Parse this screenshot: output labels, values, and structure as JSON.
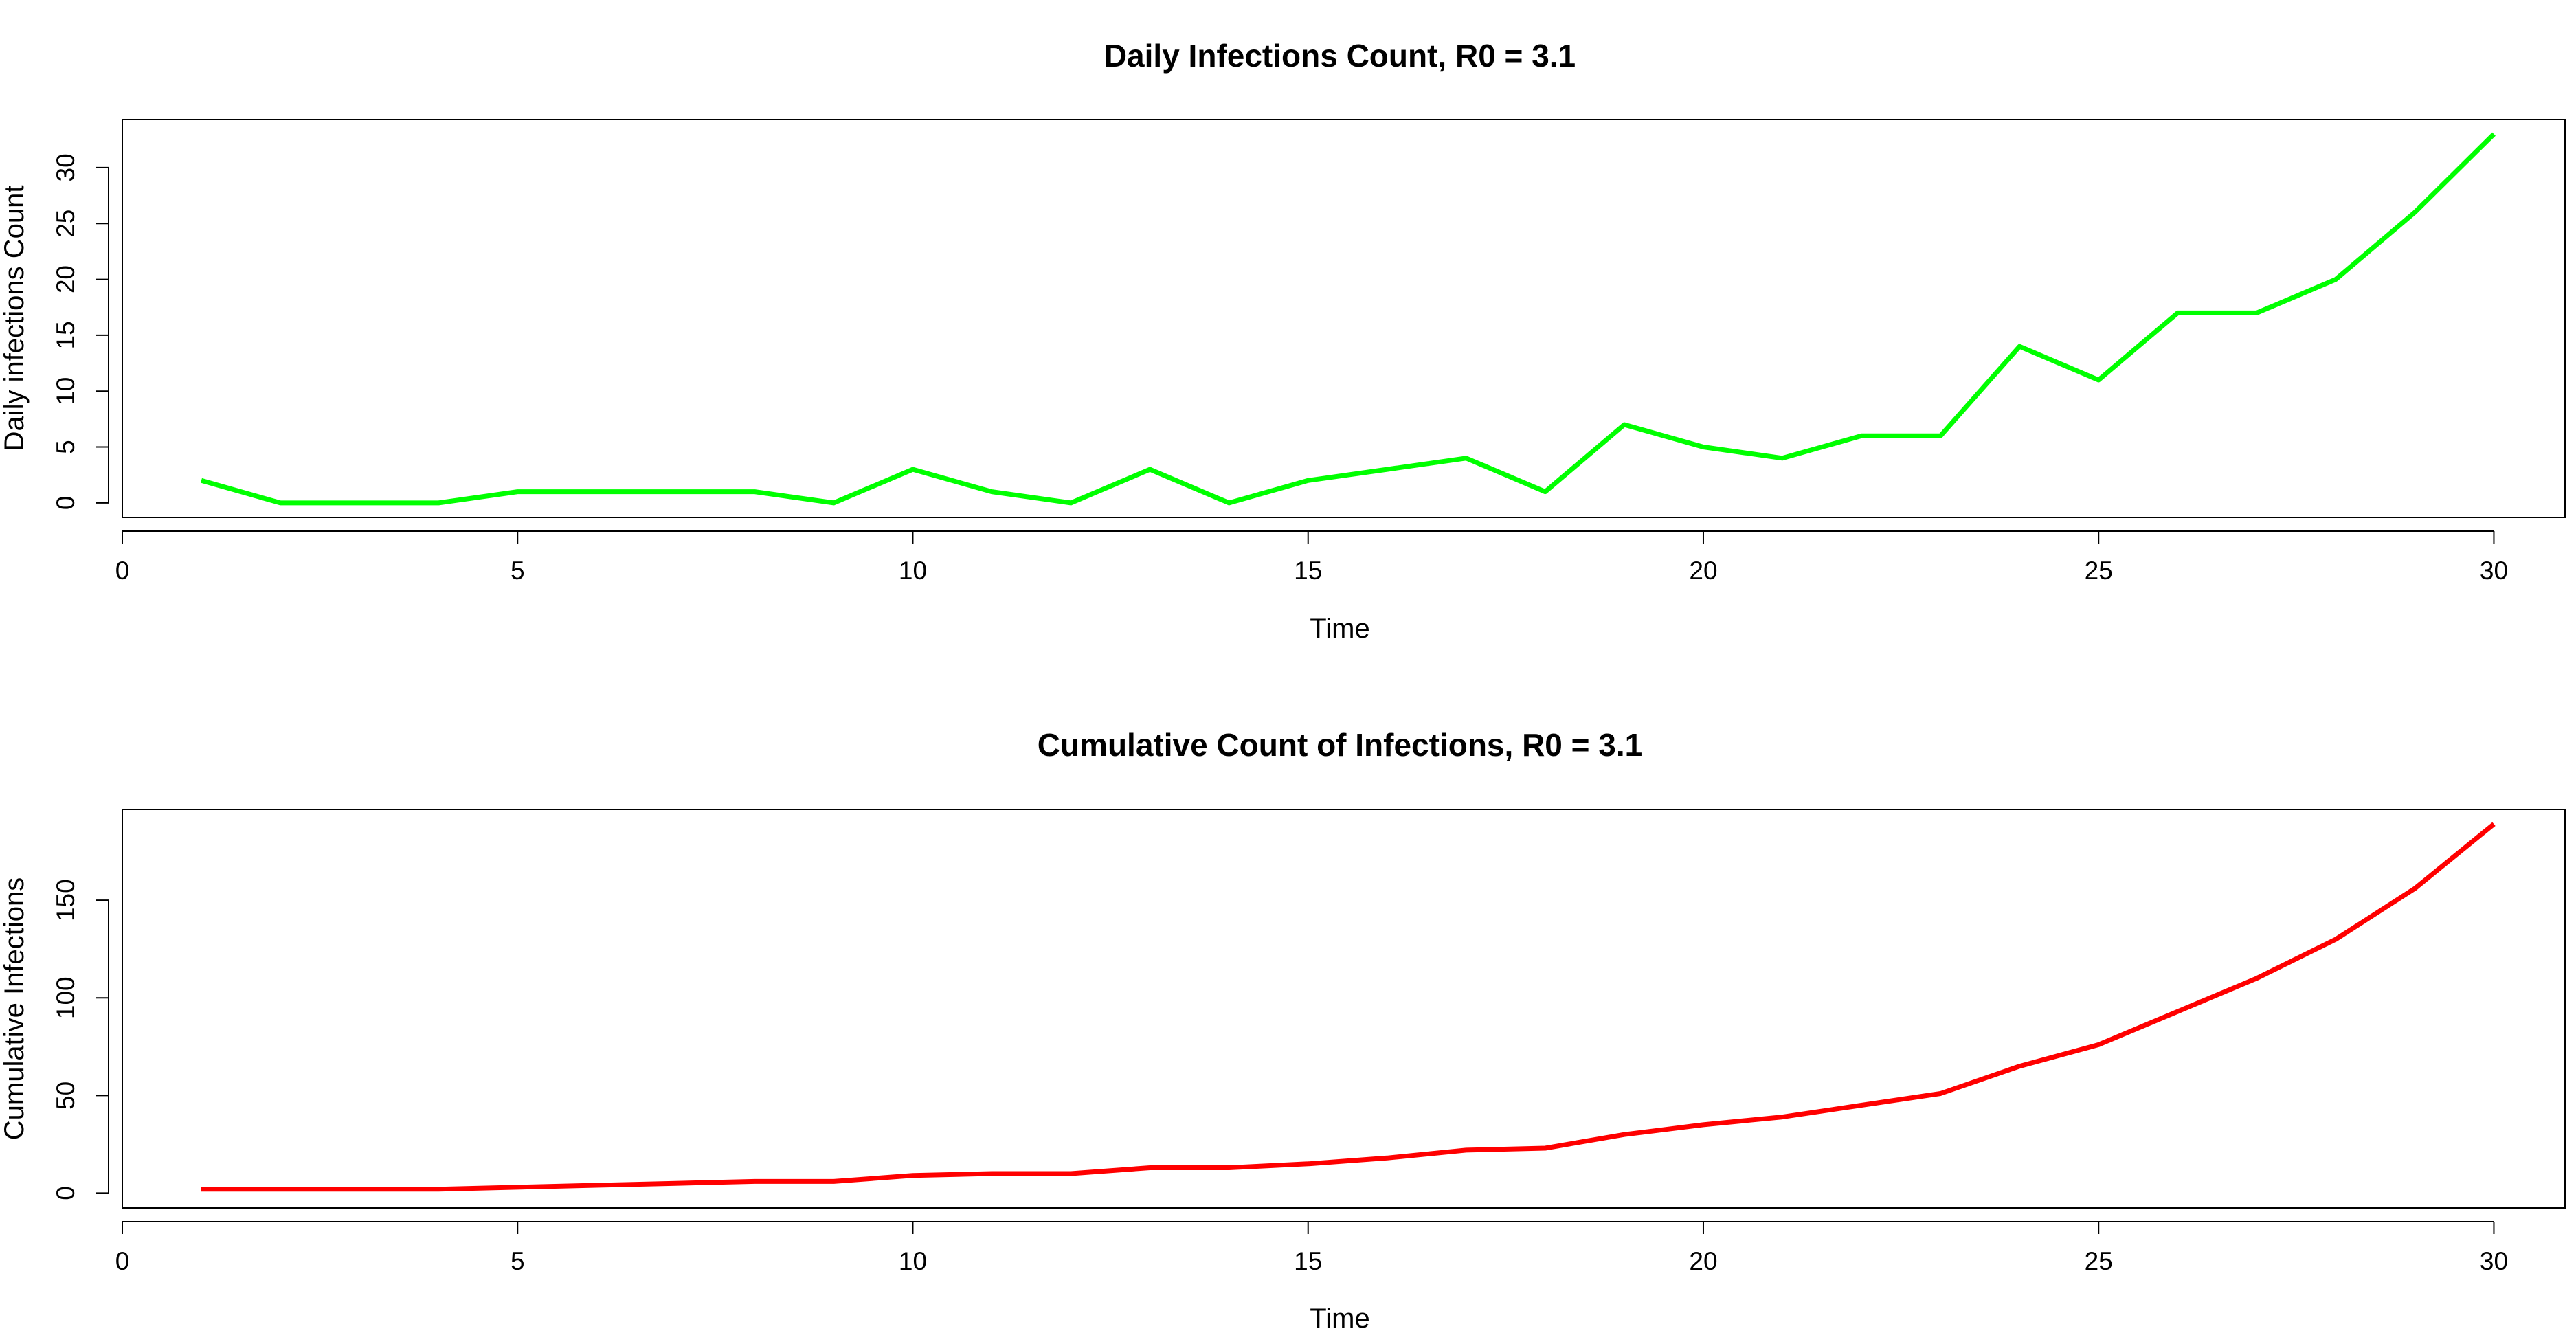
{
  "chart_data": [
    {
      "type": "line",
      "title": "Daily Infections Count, R0 = 3.1",
      "xlabel": "Time",
      "ylabel": "Daily infections Count",
      "x": [
        1,
        2,
        3,
        4,
        5,
        6,
        7,
        8,
        9,
        10,
        11,
        12,
        13,
        14,
        15,
        16,
        17,
        18,
        19,
        20,
        21,
        22,
        23,
        24,
        25,
        26,
        27,
        28,
        29,
        30
      ],
      "series": [
        {
          "values": [
            2,
            0,
            0,
            0,
            1,
            1,
            1,
            1,
            0,
            3,
            1,
            0,
            3,
            0,
            2,
            3,
            4,
            1,
            7,
            5,
            4,
            6,
            6,
            14,
            11,
            17,
            17,
            20,
            26,
            33
          ]
        }
      ],
      "xlim": [
        0,
        30.9
      ],
      "ylim": [
        -1.3,
        34.3
      ],
      "xticks": [
        0,
        5,
        10,
        15,
        20,
        25,
        30
      ],
      "xtick_labels": [
        "0",
        "5",
        "10",
        "15",
        "20",
        "25",
        "30"
      ],
      "yticks": [
        0,
        5,
        10,
        15,
        20,
        25,
        30
      ],
      "ytick_labels": [
        "0",
        "5",
        "10",
        "15",
        "20",
        "25",
        "30"
      ],
      "line_color": "#00ff00",
      "grid": false,
      "legend": "none"
    },
    {
      "type": "line",
      "title": "Cumulative Count of Infections, R0 = 3.1",
      "xlabel": "Time",
      "ylabel": "Cumulative Infections",
      "x": [
        1,
        2,
        3,
        4,
        5,
        6,
        7,
        8,
        9,
        10,
        11,
        12,
        13,
        14,
        15,
        16,
        17,
        18,
        19,
        20,
        21,
        22,
        23,
        24,
        25,
        26,
        27,
        28,
        29,
        30
      ],
      "series": [
        {
          "values": [
            2,
            2,
            2,
            2,
            3,
            4,
            5,
            6,
            6,
            9,
            10,
            10,
            13,
            13,
            15,
            18,
            22,
            23,
            30,
            35,
            39,
            45,
            51,
            65,
            76,
            93,
            110,
            130,
            156,
            189
          ]
        }
      ],
      "xlim": [
        0,
        30.9
      ],
      "ylim": [
        -7.6,
        196.5
      ],
      "xticks": [
        0,
        5,
        10,
        15,
        20,
        25,
        30
      ],
      "xtick_labels": [
        "0",
        "5",
        "10",
        "15",
        "20",
        "25",
        "30"
      ],
      "yticks": [
        0,
        50,
        100,
        150
      ],
      "ytick_labels": [
        "0",
        "50",
        "100",
        "150"
      ],
      "line_color": "#ff0000",
      "grid": false,
      "legend": "none"
    }
  ]
}
